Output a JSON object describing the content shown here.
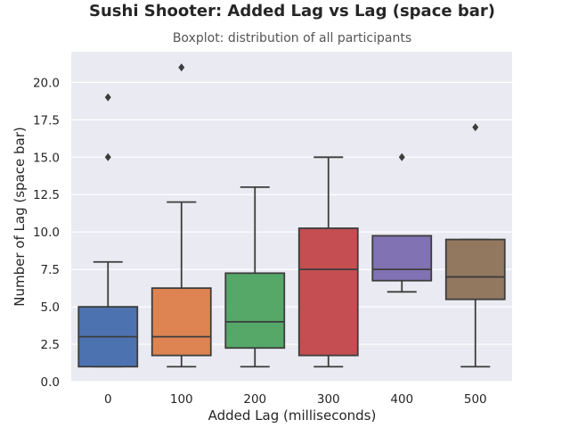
{
  "chart_data": {
    "type": "box",
    "title": "Sushi Shooter: Added Lag vs Lag (space bar)",
    "subtitle": "Boxplot: distribution of all participants",
    "xlabel": "Added Lag (milliseconds)",
    "ylabel": "Number of Lag (space bar)",
    "ylim": [
      0,
      22.05
    ],
    "yticks": [
      "0.0",
      "2.5",
      "5.0",
      "7.5",
      "10.0",
      "12.5",
      "15.0",
      "17.5",
      "20.0"
    ],
    "categories": [
      "0",
      "100",
      "200",
      "300",
      "400",
      "500"
    ],
    "colors": [
      "#4c72b0",
      "#dd8452",
      "#55a868",
      "#c44e52",
      "#8172b3",
      "#937860"
    ],
    "grid": true,
    "boxes": [
      {
        "category": "0",
        "whisker_low": 1,
        "q1": 1,
        "median": 3,
        "q3": 5,
        "whisker_high": 8,
        "outliers": [
          15,
          19
        ]
      },
      {
        "category": "100",
        "whisker_low": 1,
        "q1": 1.75,
        "median": 3,
        "q3": 6.25,
        "whisker_high": 12,
        "outliers": [
          21
        ]
      },
      {
        "category": "200",
        "whisker_low": 1,
        "q1": 2.25,
        "median": 4,
        "q3": 7.25,
        "whisker_high": 13,
        "outliers": []
      },
      {
        "category": "300",
        "whisker_low": 1,
        "q1": 1.75,
        "median": 7.5,
        "q3": 10.25,
        "whisker_high": 15,
        "outliers": []
      },
      {
        "category": "400",
        "whisker_low": 6,
        "q1": 6.75,
        "median": 7.5,
        "q3": 9.75,
        "whisker_high": 9.75,
        "outliers": [
          15
        ]
      },
      {
        "category": "500",
        "whisker_low": 1,
        "q1": 5.5,
        "median": 7,
        "q3": 9.5,
        "whisker_high": 9.5,
        "outliers": [
          17
        ]
      }
    ]
  }
}
